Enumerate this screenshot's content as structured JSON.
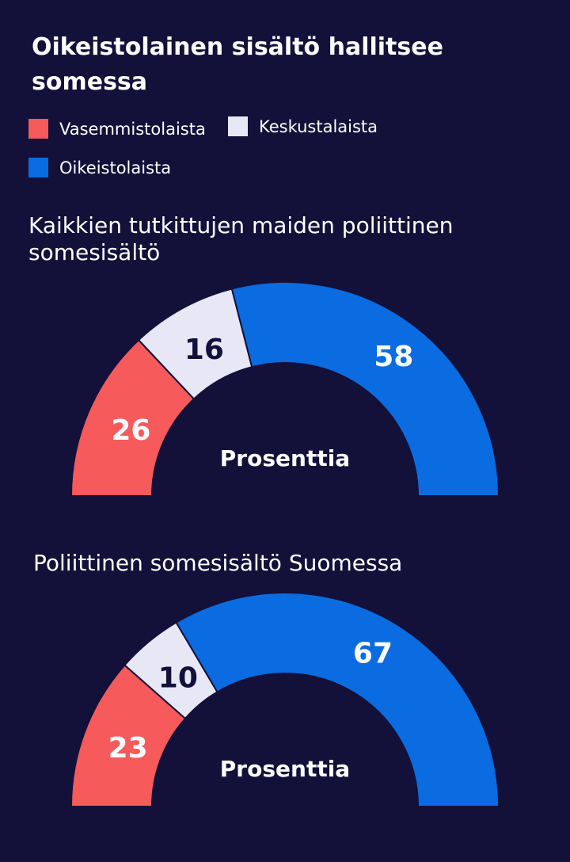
{
  "title": "Oikeistolainen sisältö hallitsee somessa",
  "legend": [
    {
      "label": "Vasemmistolaista",
      "color": "#f65a5b"
    },
    {
      "label": "Keskustalaista",
      "color": "#e8e7f6"
    },
    {
      "label": "Oikeistolaista",
      "color": "#0a6ce0"
    }
  ],
  "chart_data": [
    {
      "type": "pie",
      "title": "Kaikkien tutkittujen maiden poliittinen somesisältö",
      "categories": [
        "Vasemmistolaista",
        "Keskustalaista",
        "Oikeistolaista"
      ],
      "values": [
        26,
        16,
        58
      ],
      "center_label": "Prosenttia",
      "legend_position": "top-left"
    },
    {
      "type": "pie",
      "title": "Poliittinen somesisältö Suomessa",
      "categories": [
        "Vasemmistolaista",
        "Keskustalaista",
        "Oikeistolaista"
      ],
      "values": [
        23,
        10,
        67
      ],
      "center_label": "Prosenttia",
      "legend_position": "top-left"
    }
  ]
}
